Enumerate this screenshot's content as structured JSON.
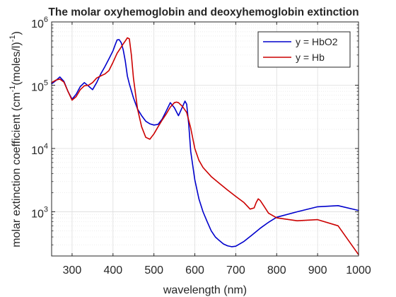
{
  "chart_data": {
    "type": "line",
    "title": "The molar oxyhemoglobin and deoxyhemoglobin extinction",
    "xlabel": "wavelength (nm)",
    "ylabel_parts": [
      "molar extinction coefficient (cm",
      "-1",
      "(moles/l)",
      "-1",
      ")"
    ],
    "xlim": [
      250,
      1000
    ],
    "ylim": [
      200,
      1000000
    ],
    "yscale": "log",
    "grid": true,
    "legend_position": "top-right",
    "x_ticks": [
      300,
      400,
      500,
      600,
      700,
      800,
      900,
      1000
    ],
    "x_tick_labels": [
      "300",
      "400",
      "500",
      "600",
      "700",
      "800",
      "900",
      "1000"
    ],
    "y_ticks": [
      1000,
      10000,
      100000,
      1000000
    ],
    "y_tick_base": "10",
    "y_tick_exponents": [
      "3",
      "4",
      "5",
      "6"
    ],
    "series": [
      {
        "name": "y = HbO2",
        "color": "#0000cc",
        "x": [
          250,
          260,
          270,
          280,
          290,
          300,
          310,
          320,
          330,
          340,
          350,
          360,
          370,
          380,
          390,
          400,
          405,
          410,
          415,
          420,
          425,
          430,
          435,
          440,
          450,
          460,
          470,
          480,
          490,
          500,
          510,
          520,
          530,
          540,
          550,
          560,
          570,
          576,
          580,
          585,
          590,
          600,
          610,
          620,
          630,
          640,
          650,
          660,
          670,
          680,
          690,
          700,
          720,
          740,
          760,
          780,
          800,
          850,
          900,
          950,
          1000
        ],
        "y": [
          105000,
          118000,
          135000,
          115000,
          80000,
          60000,
          72000,
          95000,
          110000,
          97000,
          85000,
          110000,
          150000,
          195000,
          260000,
          350000,
          430000,
          520000,
          524000,
          470000,
          360000,
          240000,
          140000,
          105000,
          63000,
          42000,
          33000,
          27000,
          24500,
          23500,
          24000,
          29000,
          39000,
          53000,
          44000,
          33000,
          46000,
          56000,
          50000,
          24000,
          9000,
          3200,
          1600,
          1000,
          700,
          500,
          400,
          350,
          310,
          290,
          280,
          285,
          340,
          430,
          550,
          680,
          820,
          1000,
          1200,
          1250,
          1050
        ]
      },
      {
        "name": "y = Hb",
        "color": "#cc0000",
        "x": [
          250,
          260,
          270,
          280,
          290,
          300,
          310,
          320,
          330,
          340,
          350,
          360,
          370,
          380,
          390,
          400,
          410,
          420,
          425,
          430,
          435,
          440,
          445,
          450,
          460,
          470,
          480,
          490,
          500,
          510,
          520,
          530,
          540,
          550,
          555,
          560,
          570,
          580,
          590,
          600,
          610,
          620,
          640,
          660,
          680,
          700,
          720,
          735,
          745,
          750,
          755,
          760,
          770,
          780,
          800,
          850,
          900,
          950,
          1000
        ],
        "y": [
          110000,
          120000,
          125000,
          112000,
          80000,
          58000,
          66000,
          85000,
          98000,
          100000,
          110000,
          130000,
          140000,
          150000,
          170000,
          230000,
          320000,
          400000,
          450000,
          500000,
          560000,
          540000,
          300000,
          130000,
          42000,
          22000,
          15000,
          14000,
          17000,
          22000,
          28000,
          35000,
          45000,
          53000,
          54000,
          53000,
          46000,
          37000,
          21000,
          10000,
          6500,
          5000,
          3600,
          2800,
          2200,
          1750,
          1400,
          1100,
          1150,
          1400,
          1600,
          1500,
          1200,
          950,
          800,
          720,
          750,
          600,
          210
        ]
      }
    ]
  }
}
